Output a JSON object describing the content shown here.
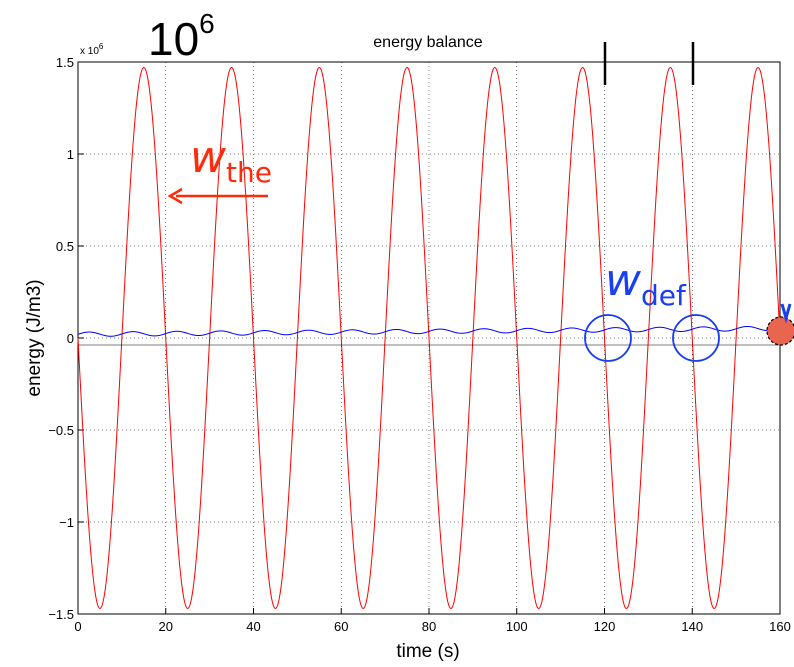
{
  "chart_data": {
    "type": "line",
    "title": "energy balance",
    "xlabel": "time (s)",
    "ylabel": "energy (J/m3)",
    "xlim": [
      0,
      160
    ],
    "ylim": [
      -1.5,
      1.5
    ],
    "x_ticks": [
      "0",
      "20",
      "40",
      "60",
      "80",
      "100",
      "120",
      "140",
      "160"
    ],
    "y_ticks": [
      "1.5",
      "1",
      "0.5",
      "0",
      "−0.5",
      "−1",
      "−1.5"
    ],
    "y_multiplier_label": "x 10",
    "y_multiplier_exp": "6",
    "grid": true,
    "series": [
      {
        "color": "#ff0000",
        "amplitude": 1.47,
        "period": 20,
        "phase_sign": -1
      },
      {
        "color": "#0000ff",
        "offset": 0.02,
        "growth": 0.0002,
        "amplitude": 0.012,
        "period": 10
      }
    ]
  },
  "annotations": {
    "big_label_base": "10",
    "big_label_exp": "6",
    "w_the_main": "w",
    "w_the_sub": "the",
    "w_def_main": "w",
    "w_def_sub": "def",
    "red_color": "#ff2a0a",
    "blue_color": "#1a3ef0",
    "marker_color": "#e8654f"
  }
}
